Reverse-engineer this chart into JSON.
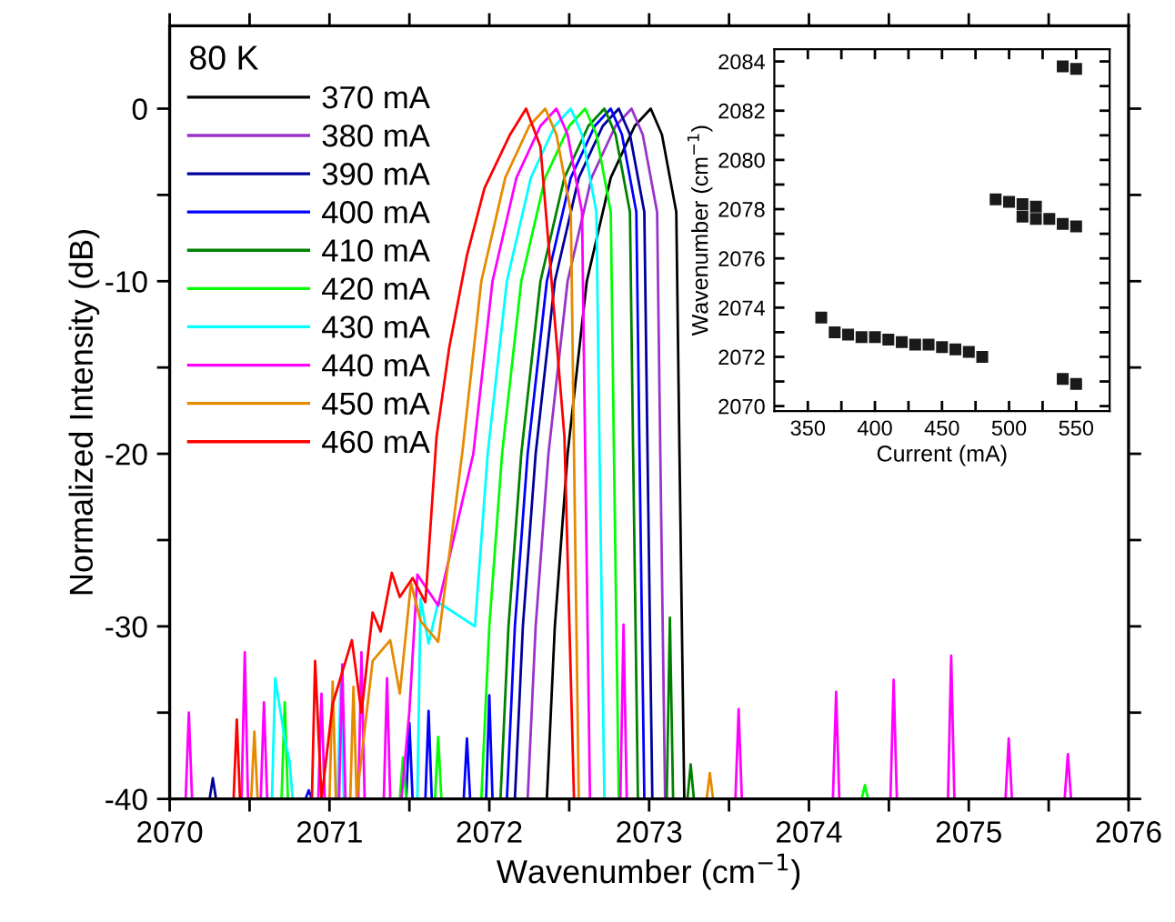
{
  "chart_data": [
    {
      "type": "line",
      "xlabel": "Wavenumber (cm$^{−1}$)",
      "ylabel": "Normalized Intensity (dB)",
      "legend_title": "80 K",
      "legend": "top left",
      "grid": false,
      "marker": "none",
      "line_style": "solid",
      "xlim": [
        2070,
        2076
      ],
      "ylim": [
        -40,
        4.8
      ],
      "xticks": [
        2070,
        {
          "value": 2070.5,
          "label": null
        },
        2071,
        {
          "value": 2071.5,
          "label": null
        },
        2072,
        {
          "value": 2072.5,
          "label": null
        },
        2073,
        {
          "value": 2073.5,
          "label": null
        },
        2074,
        {
          "value": 2074.5,
          "label": null
        },
        2075,
        {
          "value": 2075.5,
          "label": null
        },
        2076
      ],
      "yticks": [
        -40,
        {
          "value": -35,
          "label": null
        },
        -30,
        {
          "value": -25,
          "label": null
        },
        -20,
        {
          "value": -15,
          "label": null
        },
        -10,
        {
          "value": -5,
          "label": null
        },
        0
      ],
      "series": [
        {
          "name": "370 mA",
          "color": "#000000",
          "x": [
            2072.36,
            2072.41,
            2072.49,
            2072.61,
            2072.76,
            2072.91,
            2073.01,
            2073.08,
            2073.17,
            2073.19,
            2073.22
          ],
          "values": [
            -40,
            -30,
            -20,
            -10,
            -4,
            -1,
            0,
            -1.5,
            -6,
            -20,
            -40
          ]
        },
        {
          "name": "380 mA",
          "color": "#9933cc",
          "x": [
            2072.24,
            2072.29,
            2072.37,
            2072.49,
            2072.64,
            2072.79,
            2072.89,
            2072.96,
            2073.05,
            2073.07,
            2073.1
          ],
          "values": [
            -40,
            -30,
            -20,
            -10,
            -4,
            -1,
            0,
            -1.5,
            -6,
            -20,
            -40
          ]
        },
        {
          "name": "390 mA",
          "color": "#000099",
          "x": [
            2070.25,
            2070.27,
            2070.29,
            2072.16,
            2072.21,
            2072.29,
            2072.41,
            2072.56,
            2072.71,
            2072.81,
            2072.88,
            2072.97,
            2072.99,
            2073.02
          ],
          "values": [
            -40,
            -38.8,
            -40,
            -40,
            -30,
            -20,
            -10,
            -4,
            -1,
            0,
            -1.5,
            -6,
            -20,
            -40
          ]
        },
        {
          "name": "400 mA",
          "color": "#0000ff",
          "x": [
            2070.85,
            2070.87,
            2070.89,
            2071.48,
            2071.5,
            2071.52,
            2071.6,
            2071.62,
            2071.64,
            2071.84,
            2071.86,
            2071.88,
            2071.98,
            2072.0,
            2072.02,
            2072.11,
            2072.16,
            2072.24,
            2072.36,
            2072.51,
            2072.66,
            2072.76,
            2072.83,
            2072.92,
            2072.94,
            2072.97
          ],
          "values": [
            -40,
            -39.5,
            -40,
            -40,
            -35.6,
            -40,
            -40,
            -34.9,
            -40,
            -40,
            -36.5,
            -40,
            -40,
            -34,
            -40,
            -40,
            -30,
            -20,
            -10,
            -4,
            -1,
            0,
            -1.5,
            -6,
            -20,
            -40
          ]
        },
        {
          "name": "410 mA",
          "color": "#008000",
          "x": [
            2072.07,
            2072.12,
            2072.2,
            2072.32,
            2072.47,
            2072.62,
            2072.72,
            2072.79,
            2072.88,
            2072.9,
            2072.93,
            2073.11,
            2073.13,
            2073.15,
            2073.24,
            2073.26,
            2073.28
          ],
          "values": [
            -40,
            -30,
            -20,
            -10,
            -4,
            -1,
            0,
            -1.5,
            -6,
            -20,
            -40,
            -40,
            -29.5,
            -40,
            -40,
            -38,
            -40
          ]
        },
        {
          "name": "420 mA",
          "color": "#00ff00",
          "x": [
            2070.7,
            2070.72,
            2070.74,
            2071.44,
            2071.46,
            2071.48,
            2071.66,
            2071.68,
            2071.7,
            2071.95,
            2072.0,
            2072.08,
            2072.2,
            2072.35,
            2072.5,
            2072.6,
            2072.67,
            2072.76,
            2072.78,
            2072.81,
            2074.33,
            2074.35,
            2074.37
          ],
          "values": [
            -40,
            -34.4,
            -40,
            -40,
            -37.6,
            -40,
            -40,
            -36.4,
            -40,
            -40,
            -30,
            -20,
            -10,
            -4,
            -1,
            0,
            -1.5,
            -6,
            -20,
            -40,
            -40,
            -39.2,
            -40
          ]
        },
        {
          "name": "430 mA",
          "color": "#00ffff",
          "x": [
            2070.64,
            2070.66,
            2070.72,
            2070.75,
            2070.77,
            2071.05,
            2071.07,
            2071.09,
            2071.55,
            2071.57,
            2071.62,
            2071.68,
            2071.91,
            2071.99,
            2072.11,
            2072.26,
            2072.41,
            2072.51,
            2072.58,
            2072.67,
            2072.69,
            2072.72
          ],
          "values": [
            -40,
            -33,
            -36.5,
            -37.8,
            -40,
            -40,
            -33.2,
            -40,
            -40,
            -28.4,
            -31,
            -28.6,
            -30,
            -20,
            -10,
            -4,
            -1,
            0,
            -1.5,
            -6,
            -20,
            -40
          ]
        },
        {
          "name": "440 mA",
          "color": "#ff00ff",
          "x": [
            2070.1,
            2070.12,
            2070.14,
            2070.45,
            2070.47,
            2070.49,
            2070.57,
            2070.59,
            2070.61,
            2070.93,
            2070.95,
            2070.97,
            2071.06,
            2071.08,
            2071.1,
            2071.18,
            2071.2,
            2071.22,
            2071.34,
            2071.36,
            2071.38,
            2071.45,
            2071.5,
            2071.55,
            2071.68,
            2071.9,
            2072.02,
            2072.17,
            2072.32,
            2072.42,
            2072.49,
            2072.58,
            2072.6,
            2072.63,
            2072.82,
            2072.84,
            2072.86,
            2073.54,
            2073.56,
            2073.58,
            2074.15,
            2074.17,
            2074.19,
            2074.51,
            2074.53,
            2074.55,
            2074.87,
            2074.89,
            2074.91,
            2075.23,
            2075.25,
            2075.27,
            2075.6,
            2075.62,
            2075.64
          ],
          "values": [
            -40,
            -35,
            -40,
            -40,
            -31.5,
            -40,
            -40,
            -34.4,
            -40,
            -40,
            -33.9,
            -40,
            -40,
            -32.2,
            -40,
            -40,
            -31.5,
            -40,
            -40,
            -33,
            -40,
            -40,
            -34.9,
            -27,
            -28.8,
            -20,
            -10,
            -4,
            -1,
            0,
            -1.5,
            -6,
            -20,
            -40,
            -40,
            -29.9,
            -40,
            -40,
            -34.8,
            -40,
            -40,
            -33.8,
            -40,
            -40,
            -33.1,
            -40,
            -40,
            -31.7,
            -40,
            -40,
            -36.5,
            -40,
            -40,
            -37.4,
            -40
          ]
        },
        {
          "name": "450 mA",
          "color": "#e68a00",
          "x": [
            2070.51,
            2070.53,
            2070.55,
            2071.0,
            2071.02,
            2071.04,
            2071.13,
            2071.15,
            2071.17,
            2071.27,
            2071.38,
            2071.44,
            2071.51,
            2071.57,
            2071.68,
            2071.83,
            2071.95,
            2072.1,
            2072.25,
            2072.35,
            2072.42,
            2072.51,
            2072.53,
            2072.56,
            2073.36,
            2073.38,
            2073.4
          ],
          "values": [
            -40,
            -36.1,
            -40,
            -40,
            -33.2,
            -40,
            -40,
            -33.5,
            -40,
            -32,
            -30.8,
            -33.9,
            -27.5,
            -29.7,
            -30.9,
            -20,
            -10,
            -4,
            -1,
            0,
            -1.5,
            -6,
            -20,
            -40,
            -40,
            -38.5,
            -40
          ]
        },
        {
          "name": "460 mA",
          "color": "#ff0000",
          "x": [
            2070.4,
            2070.42,
            2070.44,
            2070.89,
            2070.91,
            2070.95,
            2071.02,
            2071.14,
            2071.2,
            2071.27,
            2071.32,
            2071.39,
            2071.44,
            2071.52,
            2071.6,
            2071.67,
            2071.75,
            2071.86,
            2071.97,
            2072.13,
            2072.23,
            2072.32,
            2072.47,
            2072.53
          ],
          "values": [
            -40,
            -35.4,
            -40,
            -40,
            -32,
            -40,
            -34.5,
            -30.8,
            -35,
            -29.2,
            -30.3,
            -26.9,
            -28.3,
            -27.2,
            -28.6,
            -19,
            -13.8,
            -8.5,
            -4.6,
            -1.5,
            0,
            -2.2,
            -19,
            -40
          ]
        }
      ]
    },
    {
      "type": "scatter",
      "xlabel": "Current (mA)",
      "ylabel": "Wavenumber (cm$^{−1}$)",
      "marker": "square",
      "grid": false,
      "xlim": [
        325,
        575
      ],
      "ylim": [
        2069.8,
        2084.5
      ],
      "xticks": [
        350,
        {
          "value": 375,
          "label": null
        },
        400,
        {
          "value": 425,
          "label": null
        },
        450,
        {
          "value": 475,
          "label": null
        },
        500,
        {
          "value": 525,
          "label": null
        },
        550
      ],
      "yticks": [
        2070,
        {
          "value": 2071,
          "label": null
        },
        2072,
        {
          "value": 2073,
          "label": null
        },
        2074,
        {
          "value": 2075,
          "label": null
        },
        2076,
        {
          "value": 2077,
          "label": null
        },
        2078,
        {
          "value": 2079,
          "label": null
        },
        2080,
        {
          "value": 2081,
          "label": null
        },
        2082,
        {
          "value": 2083,
          "label": null
        },
        2084
      ],
      "series": [
        {
          "color": "#1a1a1a",
          "x": [
            360,
            370,
            380,
            390,
            400,
            410,
            420,
            430,
            440,
            450,
            460,
            470,
            480,
            490,
            500,
            510,
            520,
            510,
            520,
            530,
            540,
            550,
            540,
            550,
            540,
            550
          ],
          "values": [
            2073.6,
            2073.0,
            2072.9,
            2072.8,
            2072.8,
            2072.7,
            2072.6,
            2072.5,
            2072.5,
            2072.4,
            2072.3,
            2072.2,
            2072.0,
            2078.4,
            2078.3,
            2078.2,
            2078.1,
            2077.7,
            2077.6,
            2077.6,
            2077.4,
            2077.3,
            2083.8,
            2083.7,
            2071.1,
            2070.9
          ]
        }
      ]
    }
  ]
}
